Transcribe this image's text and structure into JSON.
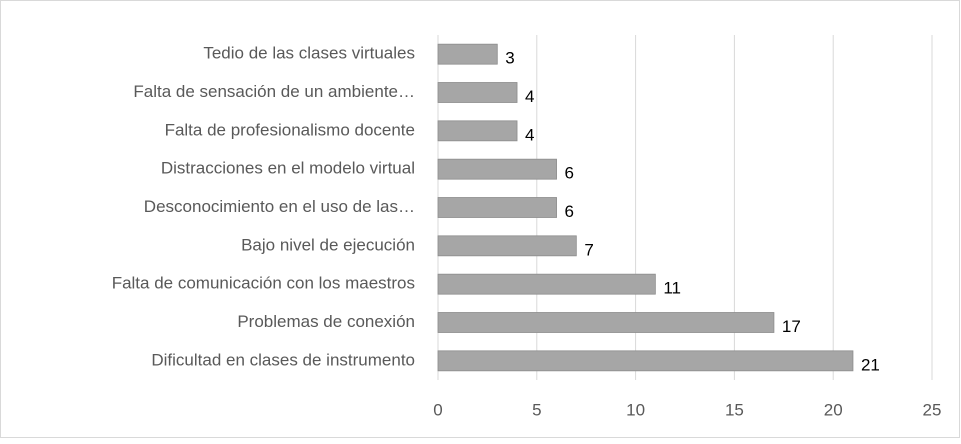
{
  "chart_data": {
    "type": "bar",
    "orientation": "horizontal",
    "categories": [
      "Tedio de las clases virtuales",
      "Falta de sensación de un ambiente…",
      "Falta de profesionalismo docente",
      "Distracciones en el modelo virtual",
      "Desconocimiento en el uso de las…",
      "Bajo nivel de ejecución",
      "Falta de comunicación con los maestros",
      "Problemas de conexión",
      "Dificultad en clases de instrumento"
    ],
    "values": [
      3,
      4,
      4,
      6,
      6,
      7,
      11,
      17,
      21
    ],
    "color": "#a6a6a6",
    "xlim": [
      0,
      25
    ],
    "xticks": [
      0,
      5,
      10,
      15,
      20,
      25
    ],
    "grid": true
  }
}
